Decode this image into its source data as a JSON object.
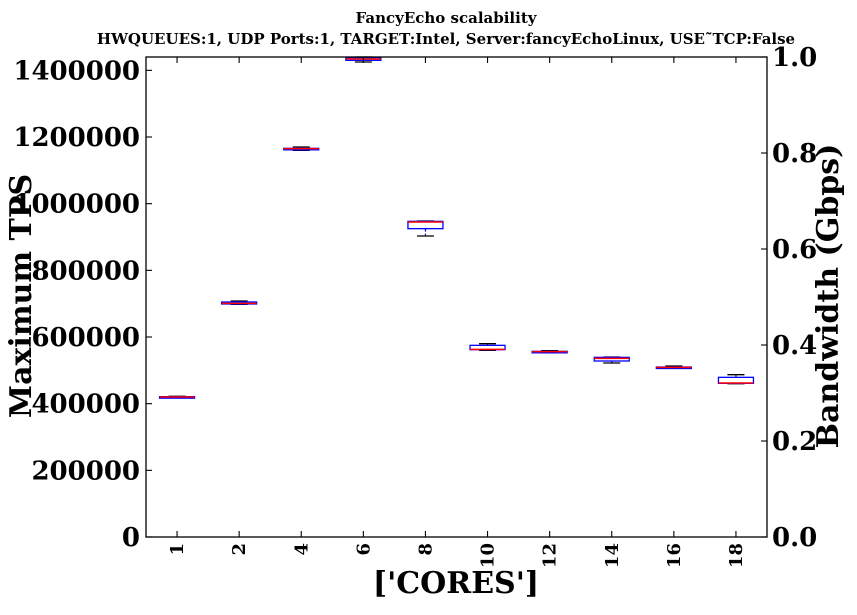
{
  "chart_data": {
    "type": "box",
    "title": "FancyEcho scalability",
    "subtitle": "HWQUEUES:1, UDP Ports:1, TARGET:Intel, Server:fancyEchoLinux, USE˜TCP:False",
    "xlabel": "['CORES']",
    "ylabel": "Maximum TPS",
    "y2label": "Bandwidth (Gbps)",
    "categories": [
      "1",
      "2",
      "4",
      "6",
      "8",
      "10",
      "12",
      "14",
      "16",
      "18"
    ],
    "ylim": [
      0,
      1440000
    ],
    "y2lim": [
      0.0,
      1.0
    ],
    "yticks": [
      0,
      200000,
      400000,
      600000,
      800000,
      1000000,
      1200000,
      1400000
    ],
    "y2ticks": [
      0.0,
      0.2,
      0.4,
      0.6,
      0.8,
      1.0
    ],
    "ytick_labels": [
      "0",
      "200000",
      "400000",
      "600000",
      "800000",
      "1000000",
      "1200000",
      "1400000"
    ],
    "y2tick_labels": [
      "0.0",
      "0.2",
      "0.4",
      "0.6",
      "0.8",
      "1.0"
    ],
    "grid": false,
    "boxes": [
      {
        "category": "1",
        "min": 418000,
        "q1": 419000,
        "median": 420000,
        "q3": 421000,
        "max": 422000
      },
      {
        "category": "2",
        "min": 698000,
        "q1": 699000,
        "median": 701000,
        "q3": 705000,
        "max": 708000
      },
      {
        "category": "4",
        "min": 1160000,
        "q1": 1162000,
        "median": 1165000,
        "q3": 1166000,
        "max": 1170000
      },
      {
        "category": "6",
        "min": 1425000,
        "q1": 1430000,
        "median": 1434000,
        "q3": 1438000,
        "max": 1440000
      },
      {
        "category": "8",
        "min": 903000,
        "q1": 925000,
        "median": 945000,
        "q3": 947000,
        "max": 948000
      },
      {
        "category": "10",
        "min": 560000,
        "q1": 562000,
        "median": 563000,
        "q3": 575000,
        "max": 580000
      },
      {
        "category": "12",
        "min": 553000,
        "q1": 554000,
        "median": 556000,
        "q3": 557000,
        "max": 559000
      },
      {
        "category": "14",
        "min": 522000,
        "q1": 528000,
        "median": 536000,
        "q3": 539000,
        "max": 540000
      },
      {
        "category": "16",
        "min": 506000,
        "q1": 507000,
        "median": 509000,
        "q3": 510000,
        "max": 513000
      },
      {
        "category": "18",
        "min": 460000,
        "q1": 461000,
        "median": 462000,
        "q3": 479000,
        "max": 487000
      }
    ],
    "colors": {
      "box": "#0000ff",
      "median": "#ff0000",
      "whisker": "#0000ff",
      "cap": "#000000",
      "axis": "#000000"
    }
  }
}
